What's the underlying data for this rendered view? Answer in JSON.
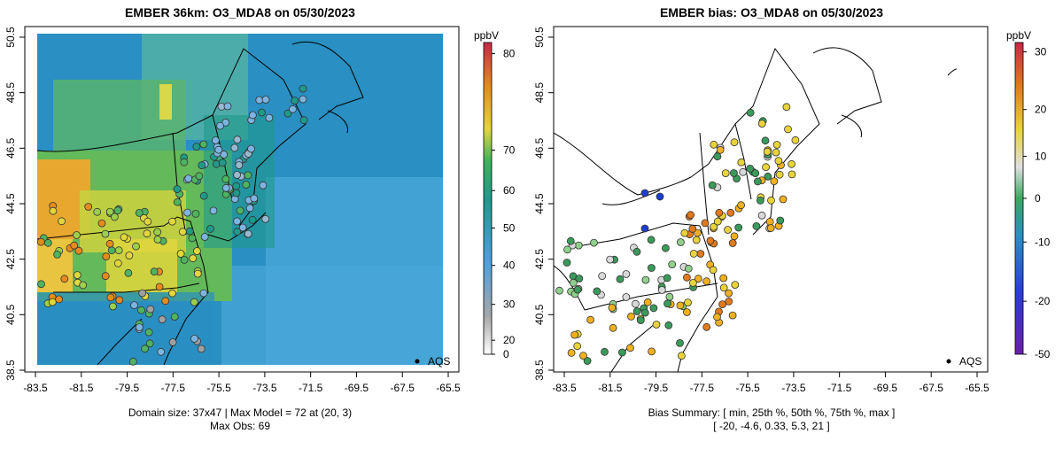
{
  "left_panel": {
    "title": "EMBER 36km: O3_MDA8 on 05/30/2023",
    "colorbar_unit": "ppbV",
    "colorbar_ticks": [
      "0",
      "20",
      "30",
      "40",
      "50",
      "60",
      "70",
      "80"
    ],
    "legend_label": "AQS",
    "footer_line1": "Domain size: 37x47 | Max Model = 72 at (20, 3)",
    "footer_line2": "Max Obs: 69"
  },
  "right_panel": {
    "title": "EMBER bias: O3_MDA8 on 05/30/2023",
    "colorbar_unit": "ppbV",
    "colorbar_ticks": [
      "-50",
      "-20",
      "-10",
      "0",
      "10",
      "20",
      "30"
    ],
    "legend_label": "AQS",
    "footer_line1": "Bias Summary: [ min, 25th %, 50th %, 75th %, max ]",
    "footer_line2": "[ -20,   -4.6,   0.33,   5.3,   21 ]"
  },
  "axes": {
    "x_ticks": [
      "-83.5",
      "-81.5",
      "-79.5",
      "-77.5",
      "-75.5",
      "-73.5",
      "-71.5",
      "-69.5",
      "-67.5",
      "-65.5"
    ],
    "y_ticks": [
      "38.5",
      "40.5",
      "42.5",
      "44.5",
      "46.5",
      "48.5",
      "50.5"
    ]
  },
  "colors": {
    "model_background": "#2a8fc2",
    "ocean_light": "#4aa6d8",
    "green": "#4fb35f",
    "yellow": "#e2d63c",
    "orange": "#e58b1c",
    "blue_obs": "#7db4e0",
    "bias_neg": "#3a9a5a",
    "bias_pos": "#f0b020",
    "bias_strong_neg": "#1a3fd0"
  },
  "chart_data": [
    {
      "type": "heatmap",
      "title": "EMBER 36km: O3_MDA8 on 05/30/2023",
      "xlim": [
        -84.5,
        -65.0
      ],
      "ylim": [
        38.5,
        50.5
      ],
      "unit": "ppbV",
      "colorbar_range": [
        0,
        82
      ],
      "domain_size": "37x47",
      "max_model": 72,
      "max_model_cell": [
        20,
        3
      ],
      "max_obs": 69
    },
    {
      "type": "scatter",
      "title": "EMBER bias: O3_MDA8 on 05/30/2023",
      "xlim": [
        -84.5,
        -65.0
      ],
      "ylim": [
        38.5,
        50.5
      ],
      "unit": "ppbV",
      "colorbar_range": [
        -50,
        32
      ],
      "bias_summary": {
        "min": -20,
        "p25": -4.6,
        "p50": 0.33,
        "p75": 5.3,
        "max": 21
      }
    }
  ]
}
